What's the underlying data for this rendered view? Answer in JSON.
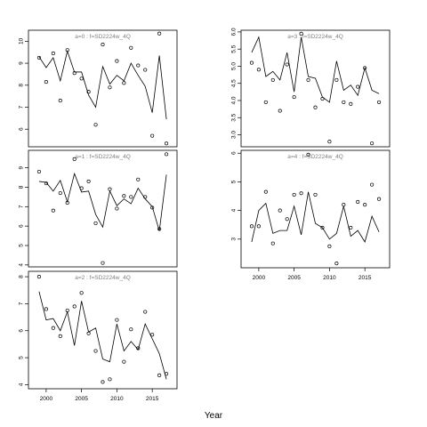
{
  "chart_data": {
    "type": "scatter",
    "xlabel": "Year",
    "x_ticks": [
      2000,
      2005,
      2010,
      2015
    ],
    "colors": {
      "frame": "#000000",
      "title": "#7f7f7f",
      "line": "#000000",
      "point": "#000000"
    },
    "panels": [
      {
        "id": "a0",
        "title": "a=0  :  f=SD2224w_4Q",
        "xlim": [
          1997.5,
          2018.5
        ],
        "ylim": [
          5.2,
          10.5
        ],
        "y_ticks": [
          6,
          7,
          8,
          9,
          10
        ],
        "points": [
          [
            1999,
            9.25
          ],
          [
            2000,
            8.15
          ],
          [
            2001,
            9.45
          ],
          [
            2002,
            7.3
          ],
          [
            2003,
            9.6
          ],
          [
            2004,
            8.55
          ],
          [
            2005,
            8.3
          ],
          [
            2006,
            7.7
          ],
          [
            2007,
            6.2
          ],
          [
            2008,
            9.85
          ],
          [
            2009,
            7.9
          ],
          [
            2010,
            9.1
          ],
          [
            2011,
            8.1
          ],
          [
            2012,
            9.7
          ],
          [
            2013,
            8.9
          ],
          [
            2014,
            8.7
          ],
          [
            2015,
            5.7
          ],
          [
            2016,
            10.35
          ],
          [
            2017,
            5.35
          ]
        ],
        "fitted": [
          [
            1999,
            9.3
          ],
          [
            2000,
            8.8
          ],
          [
            2001,
            9.25
          ],
          [
            2002,
            8.2
          ],
          [
            2003,
            9.55
          ],
          [
            2004,
            8.6
          ],
          [
            2005,
            8.6
          ],
          [
            2006,
            7.55
          ],
          [
            2007,
            7.0
          ],
          [
            2008,
            8.85
          ],
          [
            2009,
            8.05
          ],
          [
            2010,
            8.45
          ],
          [
            2011,
            8.2
          ],
          [
            2012,
            9.0
          ],
          [
            2013,
            8.45
          ],
          [
            2014,
            7.95
          ],
          [
            2015,
            6.75
          ],
          [
            2016,
            9.35
          ],
          [
            2017,
            6.45
          ]
        ]
      },
      {
        "id": "a1",
        "title": "a=1  :  f=SD2224w_4Q",
        "xlim": [
          1997.5,
          2018.5
        ],
        "ylim": [
          3.9,
          9.9
        ],
        "y_ticks": [
          4,
          5,
          6,
          7,
          8,
          9
        ],
        "points": [
          [
            1999,
            8.8
          ],
          [
            2000,
            8.2
          ],
          [
            2001,
            6.8
          ],
          [
            2002,
            7.7
          ],
          [
            2003,
            7.2
          ],
          [
            2004,
            9.45
          ],
          [
            2005,
            7.95
          ],
          [
            2006,
            8.3
          ],
          [
            2007,
            6.15
          ],
          [
            2008,
            4.1
          ],
          [
            2009,
            7.9
          ],
          [
            2010,
            6.9
          ],
          [
            2011,
            7.55
          ],
          [
            2012,
            7.5
          ],
          [
            2013,
            8.4
          ],
          [
            2014,
            7.5
          ],
          [
            2015,
            6.95
          ],
          [
            2016,
            5.85
          ],
          [
            2017,
            9.7
          ]
        ],
        "fitted": [
          [
            1999,
            8.3
          ],
          [
            2000,
            8.25
          ],
          [
            2001,
            7.8
          ],
          [
            2002,
            8.35
          ],
          [
            2003,
            7.25
          ],
          [
            2004,
            8.7
          ],
          [
            2005,
            7.75
          ],
          [
            2006,
            7.8
          ],
          [
            2007,
            6.6
          ],
          [
            2008,
            5.95
          ],
          [
            2009,
            7.8
          ],
          [
            2010,
            7.05
          ],
          [
            2011,
            7.4
          ],
          [
            2012,
            7.15
          ],
          [
            2013,
            7.95
          ],
          [
            2014,
            7.4
          ],
          [
            2015,
            7.0
          ],
          [
            2016,
            5.75
          ],
          [
            2017,
            8.65
          ]
        ]
      },
      {
        "id": "a2",
        "title": "a=2  :  f=SD2224w_4Q",
        "xlim": [
          1997.5,
          2018.5
        ],
        "ylim": [
          3.85,
          8.2
        ],
        "y_ticks": [
          4,
          5,
          6,
          7,
          8
        ],
        "points": [
          [
            1999,
            8.0
          ],
          [
            2000,
            6.8
          ],
          [
            2001,
            6.1
          ],
          [
            2002,
            5.8
          ],
          [
            2003,
            6.75
          ],
          [
            2004,
            6.9
          ],
          [
            2005,
            7.4
          ],
          [
            2006,
            5.9
          ],
          [
            2007,
            5.25
          ],
          [
            2008,
            4.1
          ],
          [
            2009,
            4.2
          ],
          [
            2010,
            6.4
          ],
          [
            2011,
            4.85
          ],
          [
            2012,
            6.05
          ],
          [
            2013,
            5.35
          ],
          [
            2014,
            6.7
          ],
          [
            2015,
            5.85
          ],
          [
            2016,
            4.35
          ],
          [
            2017,
            4.4
          ]
        ],
        "fitted": [
          [
            1999,
            7.45
          ],
          [
            2000,
            6.4
          ],
          [
            2001,
            6.45
          ],
          [
            2002,
            6.0
          ],
          [
            2003,
            6.7
          ],
          [
            2004,
            5.45
          ],
          [
            2005,
            7.1
          ],
          [
            2006,
            5.95
          ],
          [
            2007,
            6.1
          ],
          [
            2008,
            4.95
          ],
          [
            2009,
            4.85
          ],
          [
            2010,
            6.25
          ],
          [
            2011,
            5.25
          ],
          [
            2012,
            5.6
          ],
          [
            2013,
            5.3
          ],
          [
            2014,
            6.25
          ],
          [
            2015,
            5.7
          ],
          [
            2016,
            5.15
          ],
          [
            2017,
            4.2
          ]
        ]
      },
      {
        "id": "a3",
        "title": "a=3  :  f=SD2224w_4Q",
        "xlim": [
          1997.5,
          2018.5
        ],
        "ylim": [
          2.65,
          6.05
        ],
        "y_ticks": [
          3.0,
          3.5,
          4.0,
          4.5,
          5.0,
          5.5,
          6.0
        ],
        "points": [
          [
            1999,
            5.1
          ],
          [
            2000,
            4.9
          ],
          [
            2001,
            3.95
          ],
          [
            2002,
            4.6
          ],
          [
            2003,
            3.7
          ],
          [
            2004,
            5.05
          ],
          [
            2005,
            4.1
          ],
          [
            2006,
            5.95
          ],
          [
            2007,
            4.6
          ],
          [
            2008,
            3.8
          ],
          [
            2009,
            4.05
          ],
          [
            2010,
            2.8
          ],
          [
            2011,
            4.6
          ],
          [
            2012,
            3.95
          ],
          [
            2013,
            3.9
          ],
          [
            2014,
            4.4
          ],
          [
            2015,
            4.95
          ],
          [
            2016,
            2.75
          ],
          [
            2017,
            3.95
          ]
        ],
        "fitted": [
          [
            1999,
            5.4
          ],
          [
            2000,
            5.85
          ],
          [
            2001,
            4.7
          ],
          [
            2002,
            4.85
          ],
          [
            2003,
            4.6
          ],
          [
            2004,
            5.4
          ],
          [
            2005,
            4.25
          ],
          [
            2006,
            5.85
          ],
          [
            2007,
            4.7
          ],
          [
            2008,
            4.65
          ],
          [
            2009,
            4.1
          ],
          [
            2010,
            3.95
          ],
          [
            2011,
            5.15
          ],
          [
            2012,
            4.3
          ],
          [
            2013,
            4.45
          ],
          [
            2014,
            4.15
          ],
          [
            2015,
            4.95
          ],
          [
            2016,
            4.3
          ],
          [
            2017,
            4.2
          ]
        ]
      },
      {
        "id": "a4",
        "title": "a=4  :  f=SD2224w_4Q",
        "xlim": [
          1997.5,
          2018.5
        ],
        "ylim": [
          2.0,
          6.1
        ],
        "y_ticks": [
          3,
          4,
          5,
          6
        ],
        "points": [
          [
            1999,
            3.45
          ],
          [
            2000,
            3.45
          ],
          [
            2001,
            4.65
          ],
          [
            2002,
            2.85
          ],
          [
            2003,
            4.0
          ],
          [
            2004,
            3.7
          ],
          [
            2005,
            4.55
          ],
          [
            2006,
            4.6
          ],
          [
            2007,
            5.95
          ],
          [
            2008,
            4.55
          ],
          [
            2009,
            3.4
          ],
          [
            2010,
            2.75
          ],
          [
            2011,
            2.15
          ],
          [
            2012,
            4.2
          ],
          [
            2013,
            3.4
          ],
          [
            2014,
            4.3
          ],
          [
            2015,
            4.2
          ],
          [
            2016,
            4.9
          ],
          [
            2017,
            4.4
          ]
        ],
        "fitted": [
          [
            1999,
            2.9
          ],
          [
            2000,
            4.0
          ],
          [
            2001,
            4.25
          ],
          [
            2002,
            3.2
          ],
          [
            2003,
            3.3
          ],
          [
            2004,
            3.3
          ],
          [
            2005,
            4.15
          ],
          [
            2006,
            3.15
          ],
          [
            2007,
            4.65
          ],
          [
            2008,
            3.55
          ],
          [
            2009,
            3.4
          ],
          [
            2010,
            3.0
          ],
          [
            2011,
            3.2
          ],
          [
            2012,
            4.15
          ],
          [
            2013,
            3.1
          ],
          [
            2014,
            3.3
          ],
          [
            2015,
            2.9
          ],
          [
            2016,
            3.8
          ],
          [
            2017,
            3.25
          ]
        ]
      }
    ]
  }
}
